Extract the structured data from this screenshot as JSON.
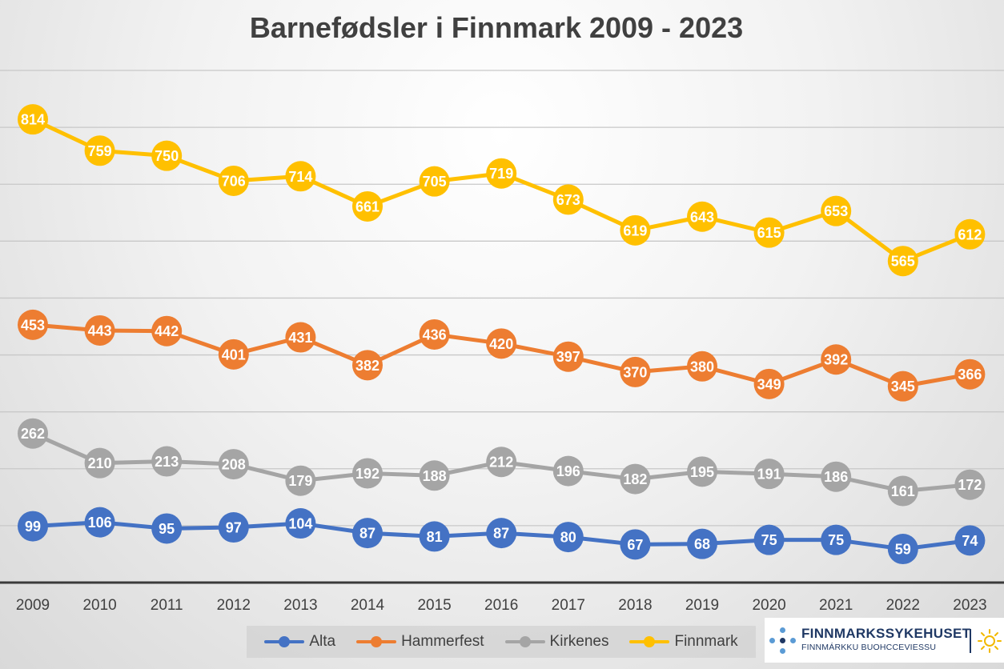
{
  "chart_data": {
    "type": "line",
    "title": "Barnefødsler i Finnmark 2009 - 2023",
    "xlabel": "",
    "ylabel": "",
    "ylim": [
      0,
      900
    ],
    "grid": true,
    "legend_position": "bottom",
    "categories": [
      "2009",
      "2010",
      "2011",
      "2012",
      "2013",
      "2014",
      "2015",
      "2016",
      "2017",
      "2018",
      "2019",
      "2020",
      "2021",
      "2022",
      "2023"
    ],
    "series": [
      {
        "name": "Alta",
        "color": "#4472c4",
        "values": [
          99,
          106,
          95,
          97,
          104,
          87,
          81,
          87,
          80,
          67,
          68,
          75,
          75,
          59,
          74
        ]
      },
      {
        "name": "Hammerfest",
        "color": "#ed7d31",
        "values": [
          453,
          443,
          442,
          401,
          431,
          382,
          436,
          420,
          397,
          370,
          380,
          349,
          392,
          345,
          366
        ]
      },
      {
        "name": "Kirkenes",
        "color": "#a5a5a5",
        "values": [
          262,
          210,
          213,
          208,
          179,
          192,
          188,
          212,
          196,
          182,
          195,
          191,
          186,
          161,
          172
        ]
      },
      {
        "name": "Finnmark",
        "color": "#ffc000",
        "values": [
          814,
          759,
          750,
          706,
          714,
          661,
          705,
          719,
          673,
          619,
          643,
          615,
          653,
          565,
          612
        ]
      }
    ]
  },
  "logo": {
    "name": "FINNMARKSSYKEHUSET",
    "subtitle": "FINNMÁRKKU BUOHCCEVIESSU"
  }
}
